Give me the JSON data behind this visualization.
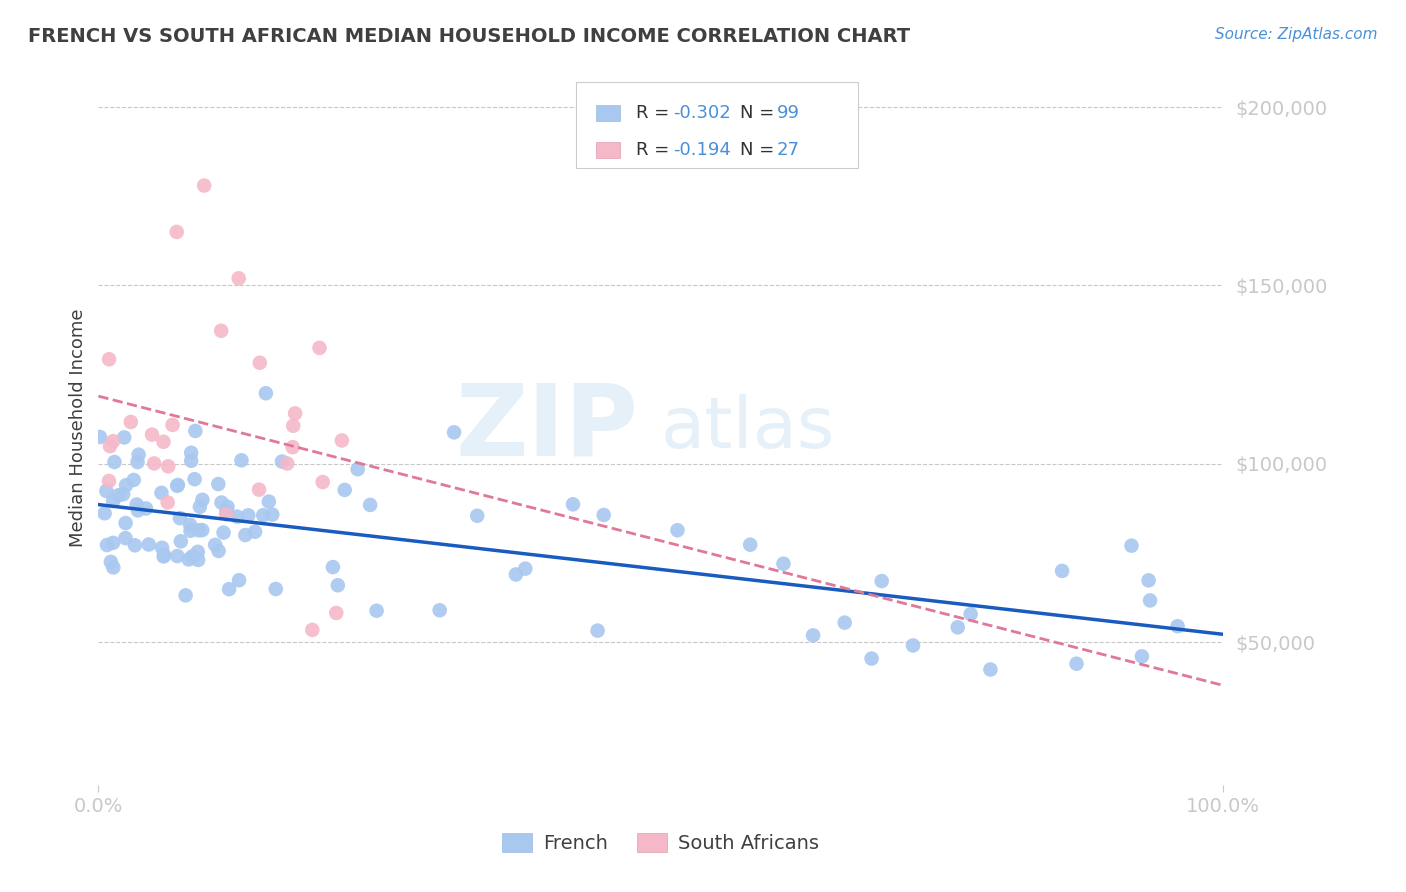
{
  "title": "FRENCH VS SOUTH AFRICAN MEDIAN HOUSEHOLD INCOME CORRELATION CHART",
  "source_text": "Source: ZipAtlas.com",
  "ylabel": "Median Household Income",
  "xlim": [
    0,
    1
  ],
  "ylim": [
    10000,
    210000
  ],
  "yticks": [
    50000,
    100000,
    150000,
    200000
  ],
  "ytick_labels": [
    "$50,000",
    "$100,000",
    "$150,000",
    "$200,000"
  ],
  "xtick_labels": [
    "0.0%",
    "100.0%"
  ],
  "watermark_zip": "ZIP",
  "watermark_atlas": "atlas",
  "french_color": "#a8c8f0",
  "sa_color": "#f4b8c8",
  "french_line_color": "#1a5bbf",
  "sa_line_color": "#e07898",
  "legend_label1": "French",
  "legend_label2": "South Africans",
  "title_color": "#404040",
  "axis_color": "#4a90d9",
  "grid_color": "#c8c8c8",
  "background_color": "#ffffff",
  "french_seed": 12,
  "sa_seed": 7
}
